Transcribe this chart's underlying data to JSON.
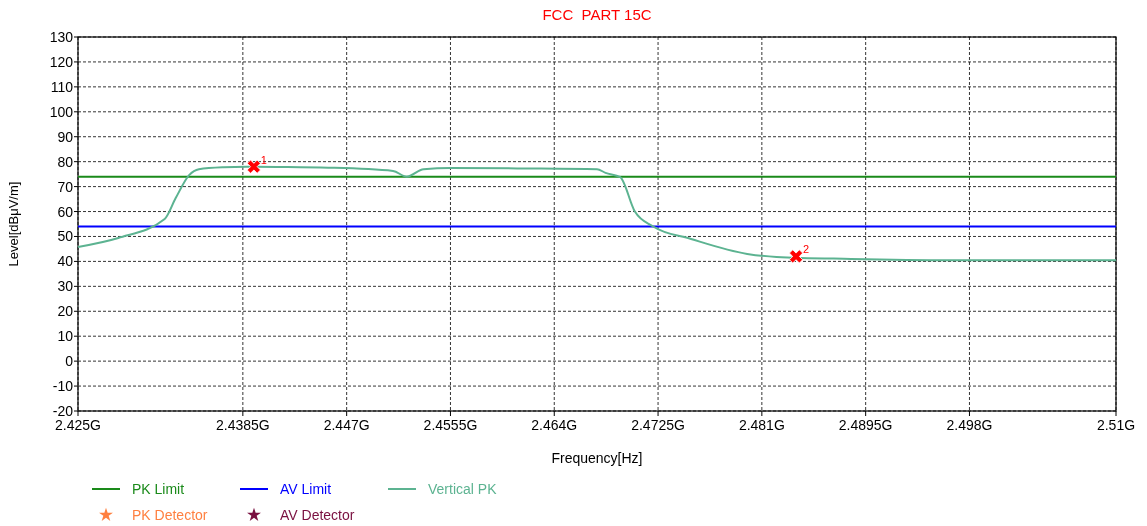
{
  "chart_data": {
    "type": "line",
    "title": "FCC  PART 15C",
    "xlabel": "Frequency[Hz]",
    "ylabel": "Level[dBμV/m]",
    "xlim": [
      2.425,
      2.51
    ],
    "xticks": [
      {
        "value": 2.425,
        "label": "2.425G"
      },
      {
        "value": 2.4385,
        "label": "2.4385G"
      },
      {
        "value": 2.447,
        "label": "2.447G"
      },
      {
        "value": 2.4555,
        "label": "2.4555G"
      },
      {
        "value": 2.464,
        "label": "2.464G"
      },
      {
        "value": 2.4725,
        "label": "2.4725G"
      },
      {
        "value": 2.481,
        "label": "2.481G"
      },
      {
        "value": 2.4895,
        "label": "2.4895G"
      },
      {
        "value": 2.498,
        "label": "2.498G"
      },
      {
        "value": 2.51,
        "label": "2.51G"
      }
    ],
    "ylim": [
      -20,
      130
    ],
    "yticks": [
      -20,
      -10,
      0,
      10,
      20,
      30,
      40,
      50,
      60,
      70,
      80,
      90,
      100,
      110,
      120,
      130
    ],
    "grid": true,
    "legend": "bottom",
    "line_style": "solid",
    "series": [
      {
        "name": "PK Limit",
        "color": "#1a8a1a",
        "x": [
          2.425,
          2.51
        ],
        "values": [
          74,
          74
        ]
      },
      {
        "name": "AV Limit",
        "color": "#0000ff",
        "x": [
          2.425,
          2.51
        ],
        "values": [
          54,
          54
        ]
      },
      {
        "name": "Vertical PK",
        "color": "#5cb391",
        "x": [
          2.425,
          2.4283,
          2.4321,
          2.433,
          2.4341,
          2.4349,
          2.4369,
          2.4388,
          2.4413,
          2.4455,
          2.4508,
          2.4519,
          2.4533,
          2.4555,
          2.4611,
          2.4675,
          2.4682,
          2.4694,
          2.4706,
          2.4721,
          2.4752,
          2.4798,
          2.4822,
          2.4883,
          2.4966,
          2.51
        ],
        "values": [
          45.8,
          49.4,
          57,
          65.4,
          74.6,
          77,
          77.8,
          78,
          77.9,
          77.6,
          76.3,
          74,
          77,
          77.5,
          77.3,
          77,
          75.5,
          73.8,
          60,
          54,
          49,
          43,
          41.8,
          41,
          40.5,
          40.5
        ]
      },
      {
        "name": "PK Detector",
        "type": "scatter",
        "marker": "star",
        "color": "#ff8040"
      },
      {
        "name": "AV Detector",
        "type": "scatter",
        "marker": "star",
        "color": "#7a1040"
      },
      {
        "type": "scatter",
        "marker": "cross",
        "color": "#ff0000",
        "x": [
          2.4394,
          2.4838
        ],
        "values": [
          78,
          42
        ]
      }
    ],
    "annotations": [
      {
        "text": "1",
        "x": 2.4394,
        "y": 78
      },
      {
        "text": "2",
        "x": 2.4838,
        "y": 42
      }
    ]
  }
}
